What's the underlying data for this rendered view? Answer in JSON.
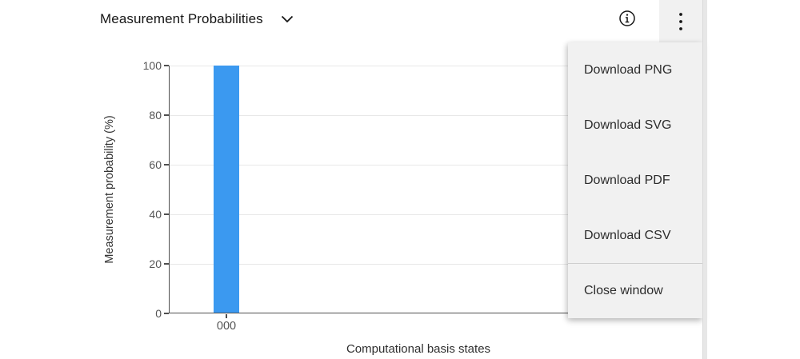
{
  "header": {
    "title": "Measurement Probabilities"
  },
  "menu": {
    "items": [
      {
        "label": "Download PNG"
      },
      {
        "label": "Download SVG"
      },
      {
        "label": "Download PDF"
      },
      {
        "label": "Download CSV"
      },
      {
        "label": "Close window"
      }
    ]
  },
  "icons": {
    "chevron": "chevron-down-icon",
    "info": "information-icon",
    "overflow": "overflow-menu-vertical-icon"
  },
  "chart_data": {
    "type": "bar",
    "categories": [
      "000"
    ],
    "values": [
      100
    ],
    "title": "",
    "xlabel": "Computational basis states",
    "ylabel": "Measurement probability (%)",
    "ylim": [
      0,
      100
    ],
    "yticks": [
      0,
      20,
      40,
      60,
      80,
      100
    ],
    "grid": "horizontal",
    "legend": "none",
    "bar_color": "#3b99f0"
  },
  "colors": {
    "bar": "#3b99f0",
    "axis_line": "#4f4f4f",
    "gridline": "#e8e8e8",
    "tick_label": "#545454",
    "title_text": "#161616",
    "menu_background": "#f1f1f1",
    "menu_text": "#2c2c2c",
    "menu_divider": "#cfcfcf",
    "scrollbar_track": "#e7e7e7"
  }
}
